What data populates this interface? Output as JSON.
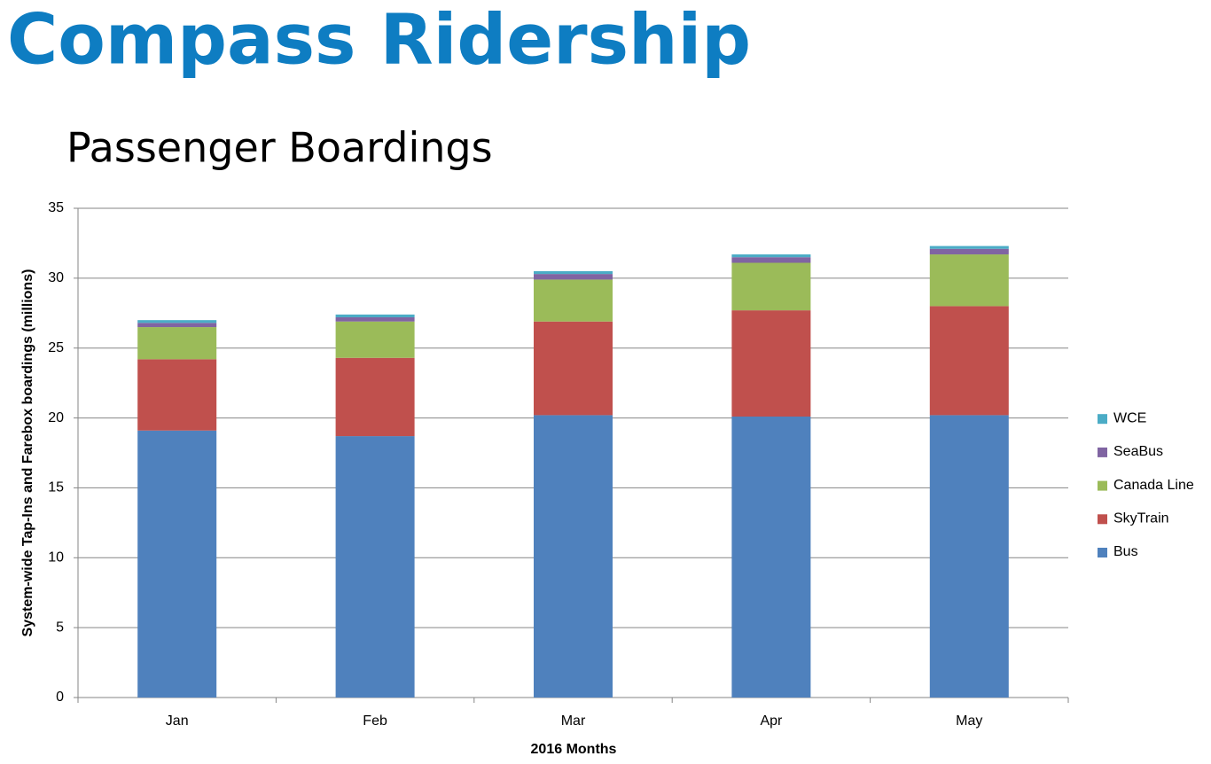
{
  "header": {
    "title": "Compass Ridership"
  },
  "chart_data": {
    "type": "stacked_bar",
    "title": "Passenger Boardings",
    "x_label": "2016 Months",
    "y_label": "System-wide Tap-Ins and Farebox boardings (millions)",
    "categories": [
      "Jan",
      "Feb",
      "Mar",
      "Apr",
      "May"
    ],
    "series": [
      {
        "name": "Bus",
        "color": "#4f81bd",
        "values": [
          19.1,
          18.7,
          20.2,
          20.1,
          20.2
        ]
      },
      {
        "name": "SkyTrain",
        "color": "#c0504d",
        "values": [
          5.1,
          5.6,
          6.7,
          7.6,
          7.8
        ]
      },
      {
        "name": "Canada Line",
        "color": "#9bbb59",
        "values": [
          2.3,
          2.6,
          3.0,
          3.4,
          3.7
        ]
      },
      {
        "name": "SeaBus",
        "color": "#8064a2",
        "values": [
          0.3,
          0.3,
          0.4,
          0.4,
          0.4
        ]
      },
      {
        "name": "WCE",
        "color": "#4bacc6",
        "values": [
          0.2,
          0.2,
          0.2,
          0.2,
          0.2
        ]
      }
    ],
    "ylim": [
      0,
      35
    ],
    "yticks": [
      0,
      5,
      10,
      15,
      20,
      25,
      30,
      35
    ],
    "grid": true,
    "legend": "right"
  }
}
